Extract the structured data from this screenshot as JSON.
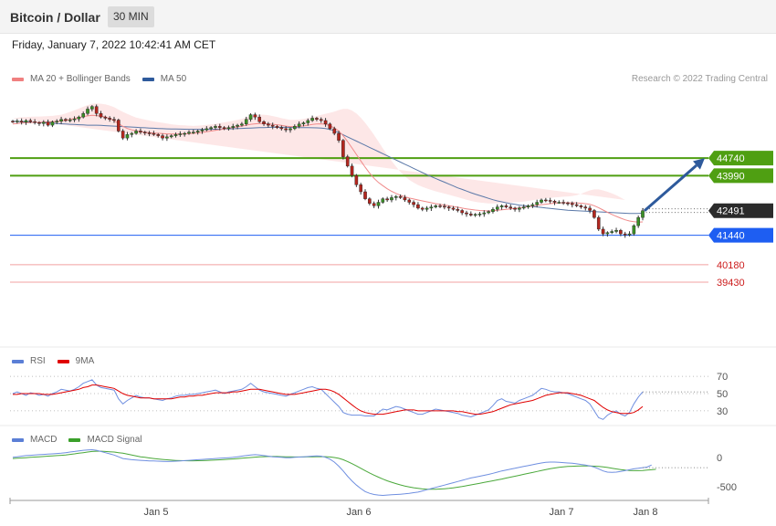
{
  "header": {
    "title": "Bitcoin / Dollar",
    "timeframe": "30 MIN"
  },
  "datetime": "Friday, January 7, 2022 10:42:41 AM CET",
  "copyright": "Research © 2022 Trading Central",
  "legends": {
    "price": [
      {
        "name": "MA 20 + Bollinger Bands",
        "color": "#f08080"
      },
      {
        "name": "MA 50",
        "color": "#2e5a9c"
      }
    ],
    "rsi": [
      {
        "name": "RSI",
        "color": "#5b7fd6"
      },
      {
        "name": "9MA",
        "color": "#e00000"
      }
    ],
    "macd": [
      {
        "name": "MACD",
        "color": "#5b7fd6"
      },
      {
        "name": "MACD Signal",
        "color": "#3aa02a"
      }
    ]
  },
  "chart_data": {
    "type": "candlestick",
    "x_ticks": [
      "Jan 5",
      "Jan 6",
      "Jan 7",
      "Jan 8"
    ],
    "price": {
      "ylim": [
        39000,
        47600
      ],
      "current_price": "42491",
      "levels": [
        {
          "label": "44740",
          "value": 44740,
          "color": "#4f9f12",
          "style": "green"
        },
        {
          "label": "43990",
          "value": 43990,
          "color": "#4f9f12",
          "style": "green"
        },
        {
          "label": "42491",
          "value": 42491,
          "color": "#333333",
          "style": "current"
        },
        {
          "label": "41440",
          "value": 41440,
          "color": "#1e5ef2",
          "style": "blue"
        },
        {
          "label": "40180",
          "value": 40180,
          "color": "#e03030",
          "style": "red"
        },
        {
          "label": "39430",
          "value": 39430,
          "color": "#e03030",
          "style": "red"
        }
      ],
      "closes": [
        46300,
        46330,
        46280,
        46350,
        46300,
        46260,
        46220,
        46280,
        46150,
        46290,
        46320,
        46400,
        46350,
        46380,
        46420,
        46500,
        46650,
        46840,
        46950,
        46650,
        46500,
        46450,
        46400,
        46370,
        45900,
        45600,
        45750,
        45800,
        45900,
        45850,
        45820,
        45800,
        45750,
        45700,
        45600,
        45650,
        45700,
        45750,
        45780,
        45800,
        45850,
        45850,
        45900,
        45950,
        46000,
        46050,
        46100,
        46050,
        46000,
        46050,
        46100,
        46150,
        46200,
        46400,
        46600,
        46500,
        46300,
        46200,
        46150,
        46100,
        46050,
        46000,
        45950,
        46000,
        46100,
        46200,
        46250,
        46350,
        46450,
        46400,
        46350,
        46200,
        46000,
        45800,
        45500,
        44800,
        44400,
        44000,
        43600,
        43300,
        43000,
        42800,
        42700,
        42850,
        43000,
        42950,
        43050,
        43100,
        43050,
        42950,
        42850,
        42750,
        42600,
        42550,
        42600,
        42650,
        42700,
        42680,
        42650,
        42600,
        42550,
        42500,
        42400,
        42350,
        42300,
        42330,
        42350,
        42400,
        42450,
        42550,
        42650,
        42700,
        42650,
        42600,
        42550,
        42600,
        42650,
        42700,
        42750,
        42850,
        42950,
        42930,
        42900,
        42850,
        42850,
        42820,
        42800,
        42750,
        42700,
        42650,
        42600,
        42500,
        42200,
        41700,
        41500,
        41550,
        41600,
        41650,
        41500,
        41450,
        41500,
        41850,
        42200,
        42491
      ],
      "ma20": [
        46200,
        46220,
        46240,
        46250,
        46260,
        46270,
        46270,
        46280,
        46290,
        46300,
        46310,
        46330,
        46360,
        46400,
        46440,
        46480,
        46520,
        46550,
        46570,
        46560,
        46540,
        46500,
        46430,
        46340,
        46220,
        46100,
        46010,
        45950,
        45900,
        45870,
        45850,
        45830,
        45810,
        45800,
        45790,
        45780,
        45770,
        45770,
        45770,
        45780,
        45790,
        45800,
        45820,
        45840,
        45870,
        45900,
        45930,
        45960,
        45990,
        46020,
        46050,
        46080,
        46110,
        46150,
        46190,
        46210,
        46220,
        46220,
        46210,
        46190,
        46170,
        46140,
        46110,
        46090,
        46090,
        46100,
        46120,
        46150,
        46180,
        46200,
        46210,
        46190,
        46130,
        46030,
        45900,
        45700,
        45450,
        45180,
        44900,
        44620,
        44350,
        44100,
        43880,
        43700,
        43560,
        43430,
        43320,
        43230,
        43150,
        43090,
        43030,
        42990,
        42950,
        42910,
        42870,
        42830,
        42790,
        42760,
        42730,
        42700,
        42670,
        42640,
        42600,
        42570,
        42540,
        42520,
        42500,
        42490,
        42480,
        42490,
        42510,
        42530,
        42550,
        42570,
        42590,
        42610,
        42630,
        42660,
        42690,
        42720,
        42750,
        42770,
        42790,
        42810,
        42820,
        42830,
        42830,
        42830,
        42820,
        42810,
        42790,
        42760,
        42700,
        42620,
        42520,
        42420,
        42330,
        42250,
        42170,
        42100,
        42050,
        42020,
        42000,
        42010
      ],
      "bb_width": [
        250,
        250,
        250,
        250,
        250,
        250,
        250,
        250,
        250,
        250,
        260,
        270,
        290,
        320,
        350,
        380,
        420,
        460,
        500,
        520,
        530,
        540,
        560,
        580,
        600,
        620,
        620,
        600,
        580,
        560,
        540,
        520,
        500,
        480,
        460,
        440,
        420,
        400,
        380,
        360,
        340,
        320,
        310,
        300,
        290,
        280,
        280,
        280,
        280,
        280,
        290,
        300,
        310,
        330,
        350,
        370,
        380,
        380,
        370,
        350,
        330,
        310,
        300,
        290,
        290,
        290,
        300,
        310,
        320,
        340,
        380,
        450,
        550,
        700,
        900,
        1150,
        1400,
        1600,
        1750,
        1850,
        1900,
        1900,
        1850,
        1750,
        1600,
        1450,
        1300,
        1150,
        1000,
        880,
        780,
        700,
        640,
        600,
        570,
        550,
        530,
        510,
        490,
        470,
        450,
        430,
        410,
        390,
        370,
        350,
        340,
        330,
        320,
        310,
        300,
        290,
        280,
        270,
        260,
        250,
        250,
        250,
        250,
        250,
        250,
        250,
        250,
        250,
        250,
        260,
        270,
        290,
        330,
        400,
        500,
        600,
        700,
        780,
        840,
        880,
        900,
        900,
        880,
        850
      ],
      "ma50": [
        46320,
        46310,
        46300,
        46290,
        46280,
        46270,
        46260,
        46250,
        46240,
        46230,
        46220,
        46210,
        46200,
        46190,
        46180,
        46170,
        46160,
        46150,
        46150,
        46150,
        46140,
        46130,
        46120,
        46110,
        46100,
        46090,
        46080,
        46070,
        46060,
        46050,
        46040,
        46030,
        46020,
        46010,
        46000,
        45995,
        45990,
        45985,
        45980,
        45978,
        45975,
        45973,
        45972,
        45972,
        45973,
        45975,
        45978,
        45982,
        45987,
        45992,
        45998,
        46005,
        46012,
        46020,
        46030,
        46038,
        46045,
        46050,
        46055,
        46058,
        46060,
        46060,
        46058,
        46055,
        46052,
        46050,
        46048,
        46045,
        46042,
        46038,
        46030,
        46010,
        45970,
        45910,
        45830,
        45740,
        45650,
        45560,
        45470,
        45380,
        45290,
        45200,
        45110,
        45020,
        44930,
        44840,
        44750,
        44660,
        44570,
        44480,
        44390,
        44300,
        44210,
        44120,
        44030,
        43950,
        43870,
        43790,
        43710,
        43630,
        43550,
        43470,
        43400,
        43330,
        43260,
        43200,
        43140,
        43080,
        43020,
        42960,
        42910,
        42870,
        42830,
        42790,
        42760,
        42730,
        42710,
        42690,
        42670,
        42650,
        42630,
        42610,
        42590,
        42570,
        42550,
        42530,
        42510,
        42500,
        42490,
        42480,
        42470,
        42460,
        42450,
        42440,
        42430,
        42420,
        42410,
        42400,
        42390,
        42380,
        42370,
        42370,
        42375,
        42385
      ],
      "forecast": {
        "from": 42491,
        "to": 44740
      }
    },
    "rsi": {
      "ylim": [
        15,
        85
      ],
      "levels": [
        70,
        50,
        30
      ],
      "rsi": [
        50,
        52,
        50,
        48,
        51,
        50,
        48,
        49,
        47,
        50,
        52,
        55,
        54,
        53,
        55,
        58,
        62,
        64,
        66,
        60,
        57,
        56,
        55,
        54,
        44,
        38,
        42,
        45,
        48,
        46,
        45,
        45,
        44,
        43,
        42,
        44,
        45,
        47,
        48,
        48,
        49,
        49,
        50,
        51,
        52,
        53,
        54,
        52,
        50,
        52,
        53,
        54,
        55,
        58,
        62,
        58,
        54,
        52,
        51,
        50,
        49,
        48,
        47,
        49,
        51,
        53,
        55,
        57,
        58,
        56,
        55,
        50,
        45,
        40,
        35,
        28,
        26,
        25,
        25,
        25,
        24,
        24,
        24,
        28,
        32,
        31,
        33,
        35,
        34,
        32,
        30,
        28,
        26,
        26,
        28,
        30,
        32,
        31,
        30,
        29,
        28,
        27,
        25,
        24,
        23,
        25,
        27,
        29,
        31,
        36,
        42,
        44,
        41,
        40,
        39,
        42,
        44,
        46,
        48,
        52,
        56,
        55,
        53,
        52,
        52,
        51,
        50,
        48,
        46,
        44,
        42,
        38,
        30,
        22,
        20,
        25,
        28,
        30,
        26,
        24,
        28,
        38,
        46,
        52
      ],
      "ma9": [
        49,
        49,
        50,
        50,
        50,
        50,
        50,
        49,
        49,
        49,
        50,
        51,
        52,
        53,
        54,
        55,
        57,
        58,
        60,
        60,
        59,
        58,
        57,
        56,
        53,
        50,
        48,
        47,
        46,
        45,
        45,
        45,
        44,
        44,
        44,
        44,
        44,
        45,
        46,
        46,
        47,
        47,
        48,
        48,
        49,
        50,
        51,
        51,
        51,
        51,
        52,
        52,
        53,
        54,
        55,
        55,
        55,
        54,
        53,
        52,
        51,
        50,
        49,
        49,
        49,
        50,
        51,
        52,
        53,
        54,
        55,
        55,
        54,
        52,
        49,
        45,
        41,
        37,
        33,
        30,
        28,
        27,
        26,
        26,
        26,
        27,
        28,
        29,
        30,
        31,
        31,
        31,
        30,
        30,
        30,
        30,
        30,
        30,
        30,
        30,
        30,
        29,
        29,
        28,
        27,
        26,
        26,
        27,
        28,
        29,
        31,
        33,
        35,
        37,
        38,
        39,
        40,
        41,
        42,
        44,
        46,
        48,
        49,
        50,
        51,
        51,
        51,
        50,
        49,
        48,
        46,
        44,
        42,
        38,
        34,
        31,
        29,
        28,
        27,
        27,
        27,
        28,
        31,
        35
      ]
    },
    "macd": {
      "ylim": [
        -700,
        230
      ],
      "ticks": [
        0,
        -500
      ],
      "macd": [
        0,
        10,
        20,
        30,
        35,
        40,
        45,
        50,
        55,
        60,
        65,
        70,
        80,
        90,
        100,
        110,
        120,
        125,
        130,
        120,
        100,
        80,
        60,
        40,
        10,
        -20,
        -30,
        -40,
        -45,
        -50,
        -55,
        -60,
        -62,
        -65,
        -68,
        -70,
        -68,
        -65,
        -60,
        -55,
        -50,
        -45,
        -40,
        -35,
        -30,
        -25,
        -20,
        -15,
        -10,
        -5,
        0,
        10,
        20,
        30,
        40,
        45,
        40,
        30,
        20,
        10,
        5,
        0,
        -5,
        -5,
        0,
        5,
        10,
        15,
        20,
        25,
        20,
        0,
        -30,
        -80,
        -150,
        -230,
        -320,
        -400,
        -470,
        -530,
        -580,
        -610,
        -630,
        -640,
        -645,
        -640,
        -635,
        -630,
        -625,
        -620,
        -610,
        -600,
        -590,
        -570,
        -550,
        -530,
        -510,
        -490,
        -470,
        -450,
        -430,
        -410,
        -390,
        -370,
        -350,
        -335,
        -320,
        -305,
        -290,
        -270,
        -250,
        -230,
        -215,
        -200,
        -185,
        -170,
        -155,
        -140,
        -125,
        -110,
        -95,
        -85,
        -80,
        -80,
        -85,
        -90,
        -95,
        -100,
        -110,
        -120,
        -130,
        -145,
        -165,
        -195,
        -230,
        -250,
        -255,
        -250,
        -240,
        -225,
        -210,
        -195,
        -185,
        -175,
        -165,
        -130
      ],
      "signal": [
        -20,
        -15,
        -10,
        -5,
        0,
        5,
        10,
        15,
        20,
        25,
        30,
        35,
        40,
        50,
        60,
        70,
        80,
        90,
        100,
        105,
        105,
        100,
        95,
        90,
        80,
        70,
        55,
        40,
        25,
        10,
        0,
        -10,
        -20,
        -28,
        -35,
        -42,
        -48,
        -52,
        -55,
        -57,
        -58,
        -58,
        -57,
        -55,
        -52,
        -49,
        -45,
        -41,
        -37,
        -32,
        -27,
        -21,
        -15,
        -9,
        -3,
        3,
        8,
        12,
        14,
        15,
        14,
        12,
        10,
        8,
        7,
        7,
        7,
        8,
        9,
        11,
        12,
        11,
        7,
        -2,
        -17,
        -40,
        -70,
        -106,
        -145,
        -186,
        -226,
        -265,
        -302,
        -336,
        -368,
        -397,
        -423,
        -446,
        -467,
        -486,
        -502,
        -516,
        -527,
        -535,
        -540,
        -542,
        -541,
        -538,
        -533,
        -526,
        -517,
        -507,
        -495,
        -482,
        -468,
        -454,
        -440,
        -426,
        -412,
        -398,
        -383,
        -368,
        -352,
        -336,
        -320,
        -304,
        -288,
        -272,
        -256,
        -240,
        -224,
        -208,
        -193,
        -180,
        -169,
        -161,
        -155,
        -151,
        -148,
        -146,
        -146,
        -147,
        -150,
        -155,
        -162,
        -172,
        -184,
        -196,
        -207,
        -216,
        -222,
        -225,
        -225,
        -222,
        -217,
        -210,
        -202
      ]
    }
  }
}
